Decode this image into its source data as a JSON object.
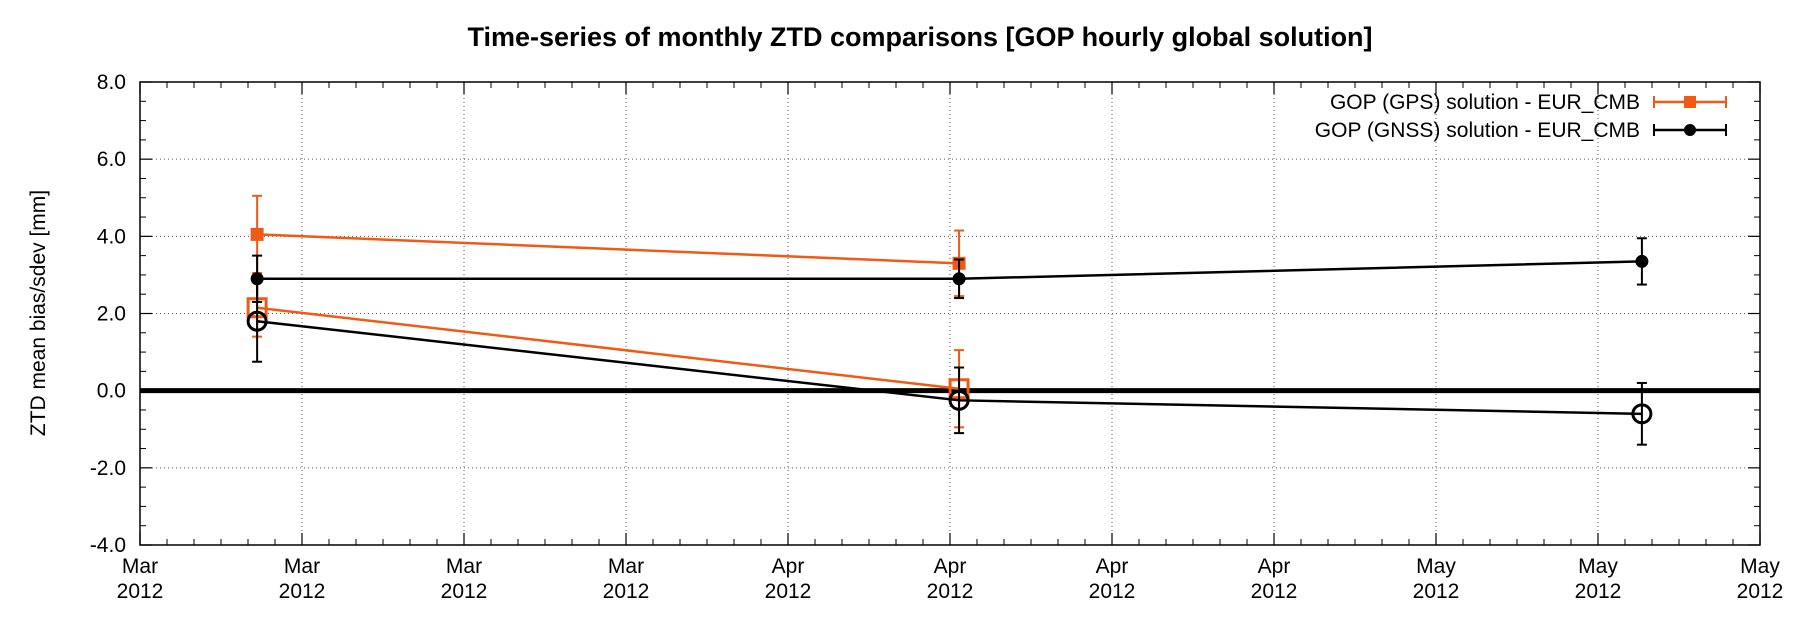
{
  "chart_data": {
    "type": "line",
    "title": "Time-series of monthly ZTD comparisons [GOP hourly global solution]",
    "xlabel": "",
    "ylabel": "ZTD mean bias/sdev [mm]",
    "ylim": [
      -4.0,
      8.0
    ],
    "yticks": [
      "-4.0",
      "-2.0",
      "0.0",
      "2.0",
      "4.0",
      "6.0",
      "8.0"
    ],
    "xtick_labels": [
      {
        "month": "Mar",
        "year": "2012"
      },
      {
        "month": "Mar",
        "year": "2012"
      },
      {
        "month": "Mar",
        "year": "2012"
      },
      {
        "month": "Mar",
        "year": "2012"
      },
      {
        "month": "Apr",
        "year": "2012"
      },
      {
        "month": "Apr",
        "year": "2012"
      },
      {
        "month": "Apr",
        "year": "2012"
      },
      {
        "month": "Apr",
        "year": "2012"
      },
      {
        "month": "May",
        "year": "2012"
      },
      {
        "month": "May",
        "year": "2012"
      },
      {
        "month": "May",
        "year": "2012"
      }
    ],
    "x_categories": [
      "Mar 2012",
      "Apr 2012",
      "May 2012"
    ],
    "grid": true,
    "legend_position": "top-right",
    "zero_line": true,
    "colors": {
      "gps": "#f05a14",
      "gnss": "#000000"
    },
    "series": [
      {
        "name": "GOP (GPS) solution - EUR_CMB",
        "key": "gps",
        "color": "#f05a14",
        "marker": "square",
        "sdev": [
          {
            "x": "Mar 2012",
            "y": 4.05,
            "err": 1.0
          },
          {
            "x": "Apr 2012",
            "y": 3.3,
            "err": 0.85
          }
        ],
        "bias": [
          {
            "x": "Mar 2012",
            "y": 2.15,
            "err": 0.75
          },
          {
            "x": "Apr 2012",
            "y": 0.05,
            "err": 1.0
          }
        ]
      },
      {
        "name": "GOP (GNSS) solution - EUR_CMB",
        "key": "gnss",
        "color": "#000000",
        "marker": "circle",
        "sdev": [
          {
            "x": "Mar 2012",
            "y": 2.9,
            "err": 0.6
          },
          {
            "x": "Apr 2012",
            "y": 2.9,
            "err": 0.5
          },
          {
            "x": "May 2012",
            "y": 3.35,
            "err": 0.6
          }
        ],
        "bias": [
          {
            "x": "Mar 2012",
            "y": 1.8,
            "err": 1.05
          },
          {
            "x": "Apr 2012",
            "y": -0.25,
            "err": 0.85
          },
          {
            "x": "May 2012",
            "y": -0.6,
            "err": 0.8
          }
        ]
      }
    ]
  }
}
